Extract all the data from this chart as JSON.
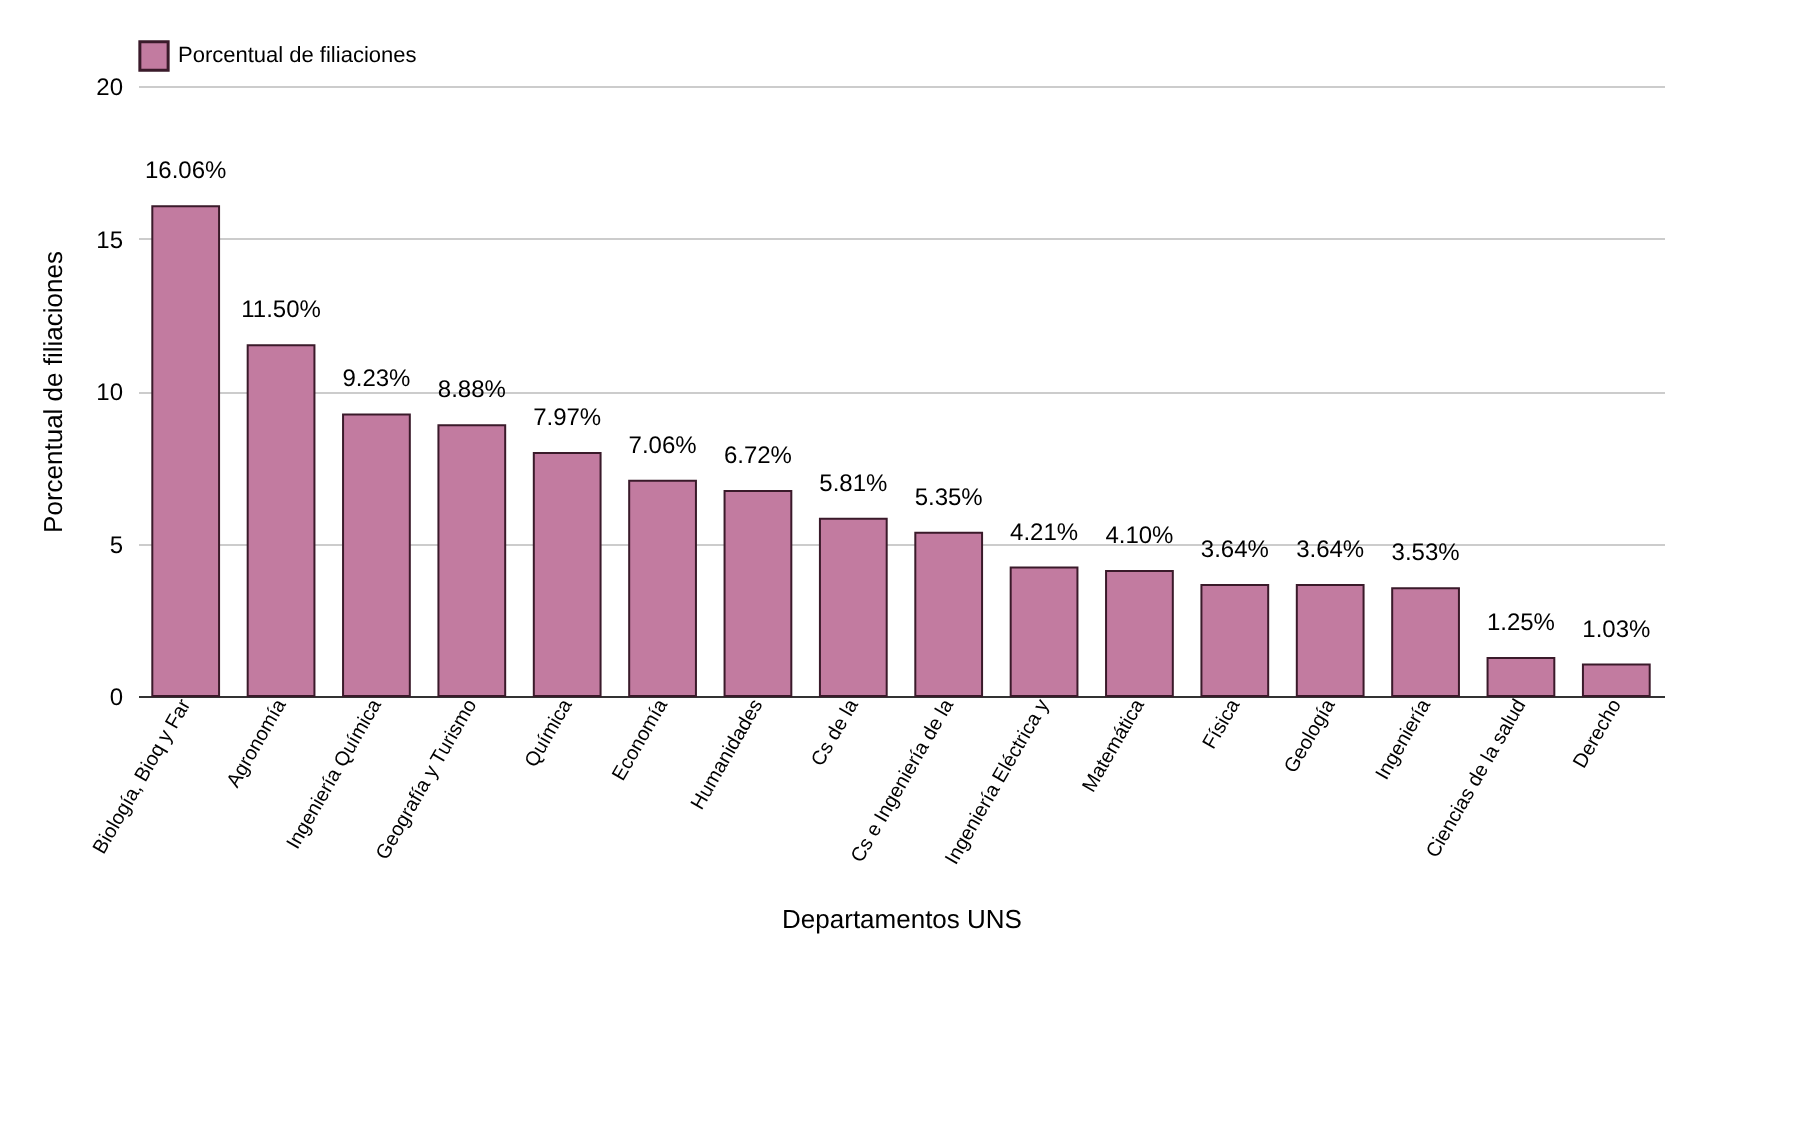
{
  "chart_data": {
    "type": "bar",
    "xlabel": "Departamentos UNS",
    "ylabel": "Porcentual de filiaciones",
    "categories": [
      "Biología, Bioq y Far",
      "Agronomía",
      "Ingeniería Química",
      "Geografía y Turismo",
      "Química",
      "Economía",
      "Humanidades",
      "Cs de la",
      "Cs e Ingeniería de la",
      "Ingeniería Eléctrica y",
      "Matemática",
      "Física",
      "Geología",
      "Ingeniería",
      "Ciencias de la salud",
      "Derecho"
    ],
    "series": [
      {
        "name": "Porcentual de filiaciones",
        "color": "#c27ba0",
        "values": [
          16.06,
          11.5,
          9.23,
          8.88,
          7.97,
          7.06,
          6.72,
          5.81,
          5.35,
          4.21,
          4.1,
          3.64,
          3.64,
          3.53,
          1.25,
          1.03
        ],
        "value_labels": [
          "16.06%",
          "11.50%",
          "9.23%",
          "8.88%",
          "7.97%",
          "7.06%",
          "6.72%",
          "5.81%",
          "5.35%",
          "4.21%",
          "4.10%",
          "3.64%",
          "3.64%",
          "3.53%",
          "1.25%",
          "1.03%"
        ]
      }
    ],
    "ylim": [
      0,
      20
    ],
    "yticks": [
      0,
      5,
      10,
      15,
      20
    ],
    "grid": "y",
    "legend": "top"
  }
}
